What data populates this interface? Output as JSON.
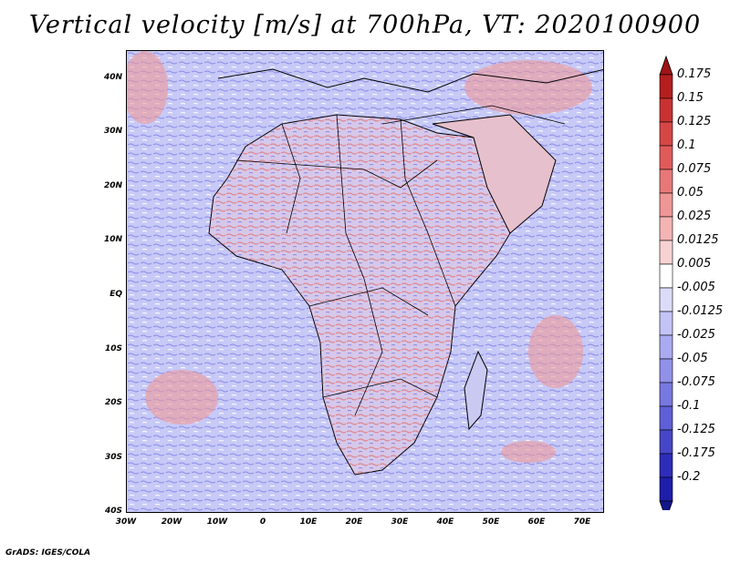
{
  "title": "Vertical velocity [m/s] at 700hPa, VT: 2020100900",
  "map": {
    "region": "Africa",
    "variable": "Vertical velocity",
    "lat_ticks": [
      "40N",
      "30N",
      "20N",
      "10N",
      "EQ",
      "10S",
      "20S",
      "30S",
      "40S"
    ],
    "lon_ticks": [
      "30W",
      "20W",
      "10W",
      "0",
      "10E",
      "20E",
      "30E",
      "40E",
      "50E",
      "60E",
      "70E"
    ],
    "extent": {
      "lon_min": -30,
      "lon_max": 75,
      "lat_min": -40,
      "lat_max": 45
    }
  },
  "colorbar": {
    "labels": [
      "0.175",
      "0.15",
      "0.125",
      "0.1",
      "0.075",
      "0.05",
      "0.025",
      "0.0125",
      "0.005",
      "-0.005",
      "-0.0125",
      "-0.025",
      "-0.05",
      "-0.075",
      "-0.1",
      "-0.125",
      "-0.175",
      "-0.2"
    ],
    "colors": [
      "#b41e1e",
      "#c83232",
      "#d74646",
      "#e15a5a",
      "#e87878",
      "#ef9696",
      "#f4b4b4",
      "#f8d2d2",
      "#ffffff",
      "#dcdcf8",
      "#c3c3f5",
      "#aaaaf0",
      "#9191ea",
      "#7878e1",
      "#5f5fd7",
      "#4646c8",
      "#2d2db9",
      "#1e1eaa"
    ],
    "top_arrow_color": "#a01414",
    "bottom_arrow_color": "#14148c"
  },
  "credit": "GrADS: IGES/COLA"
}
